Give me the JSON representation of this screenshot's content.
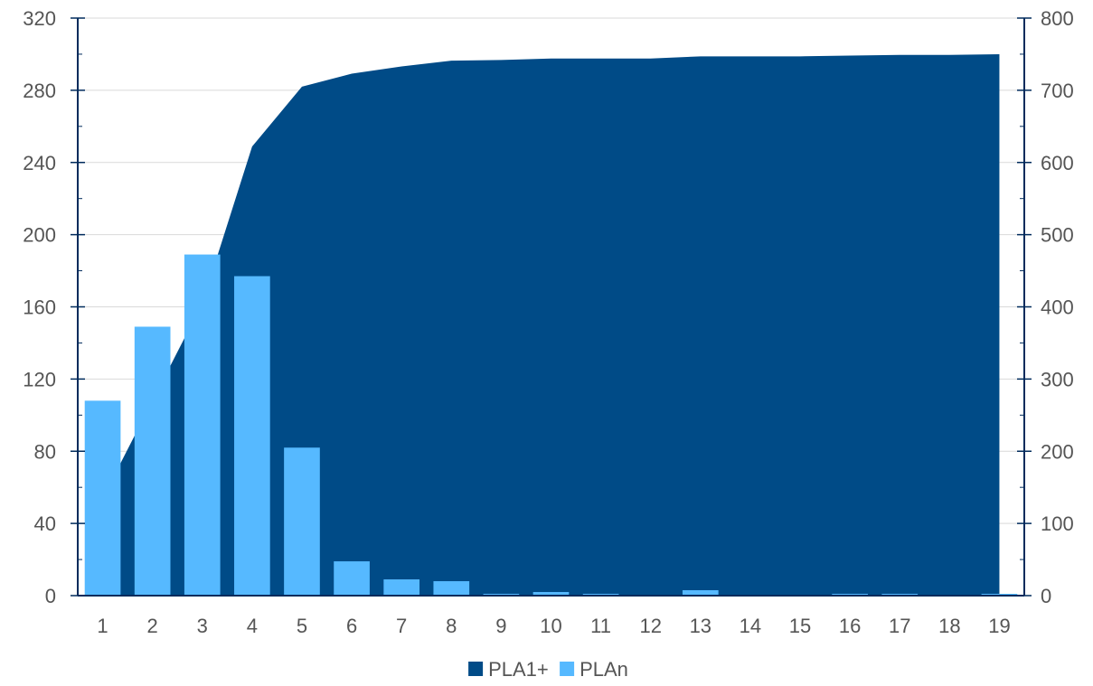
{
  "chart_data": {
    "type": "bar",
    "title": "",
    "xlabel": "",
    "ylabel": "",
    "categories": [
      "1",
      "2",
      "3",
      "4",
      "5",
      "6",
      "7",
      "8",
      "9",
      "10",
      "11",
      "12",
      "13",
      "14",
      "15",
      "16",
      "17",
      "18",
      "19"
    ],
    "left_axis": {
      "ylim": [
        0,
        320
      ],
      "ticks": [
        0,
        40,
        80,
        120,
        160,
        200,
        240,
        280,
        320
      ]
    },
    "right_axis": {
      "ylim": [
        0,
        800
      ],
      "ticks": [
        0,
        100,
        200,
        300,
        400,
        500,
        600,
        700,
        800
      ]
    },
    "grid": true,
    "legend": "bottom",
    "series": [
      {
        "name": "PLA1+",
        "kind": "area",
        "axis": "right",
        "color": "#004B87",
        "values": [
          135,
          270,
          405,
          622,
          705,
          723,
          733,
          741,
          742,
          744,
          744,
          744,
          747,
          747,
          747,
          748,
          749,
          749,
          750
        ]
      },
      {
        "name": "PLAn",
        "kind": "bar",
        "axis": "left",
        "color": "#56B9FF",
        "values": [
          108,
          149,
          189,
          177,
          82,
          19,
          9,
          8,
          1,
          2,
          1,
          0,
          3,
          0,
          0,
          1,
          1,
          0,
          1
        ]
      }
    ]
  }
}
